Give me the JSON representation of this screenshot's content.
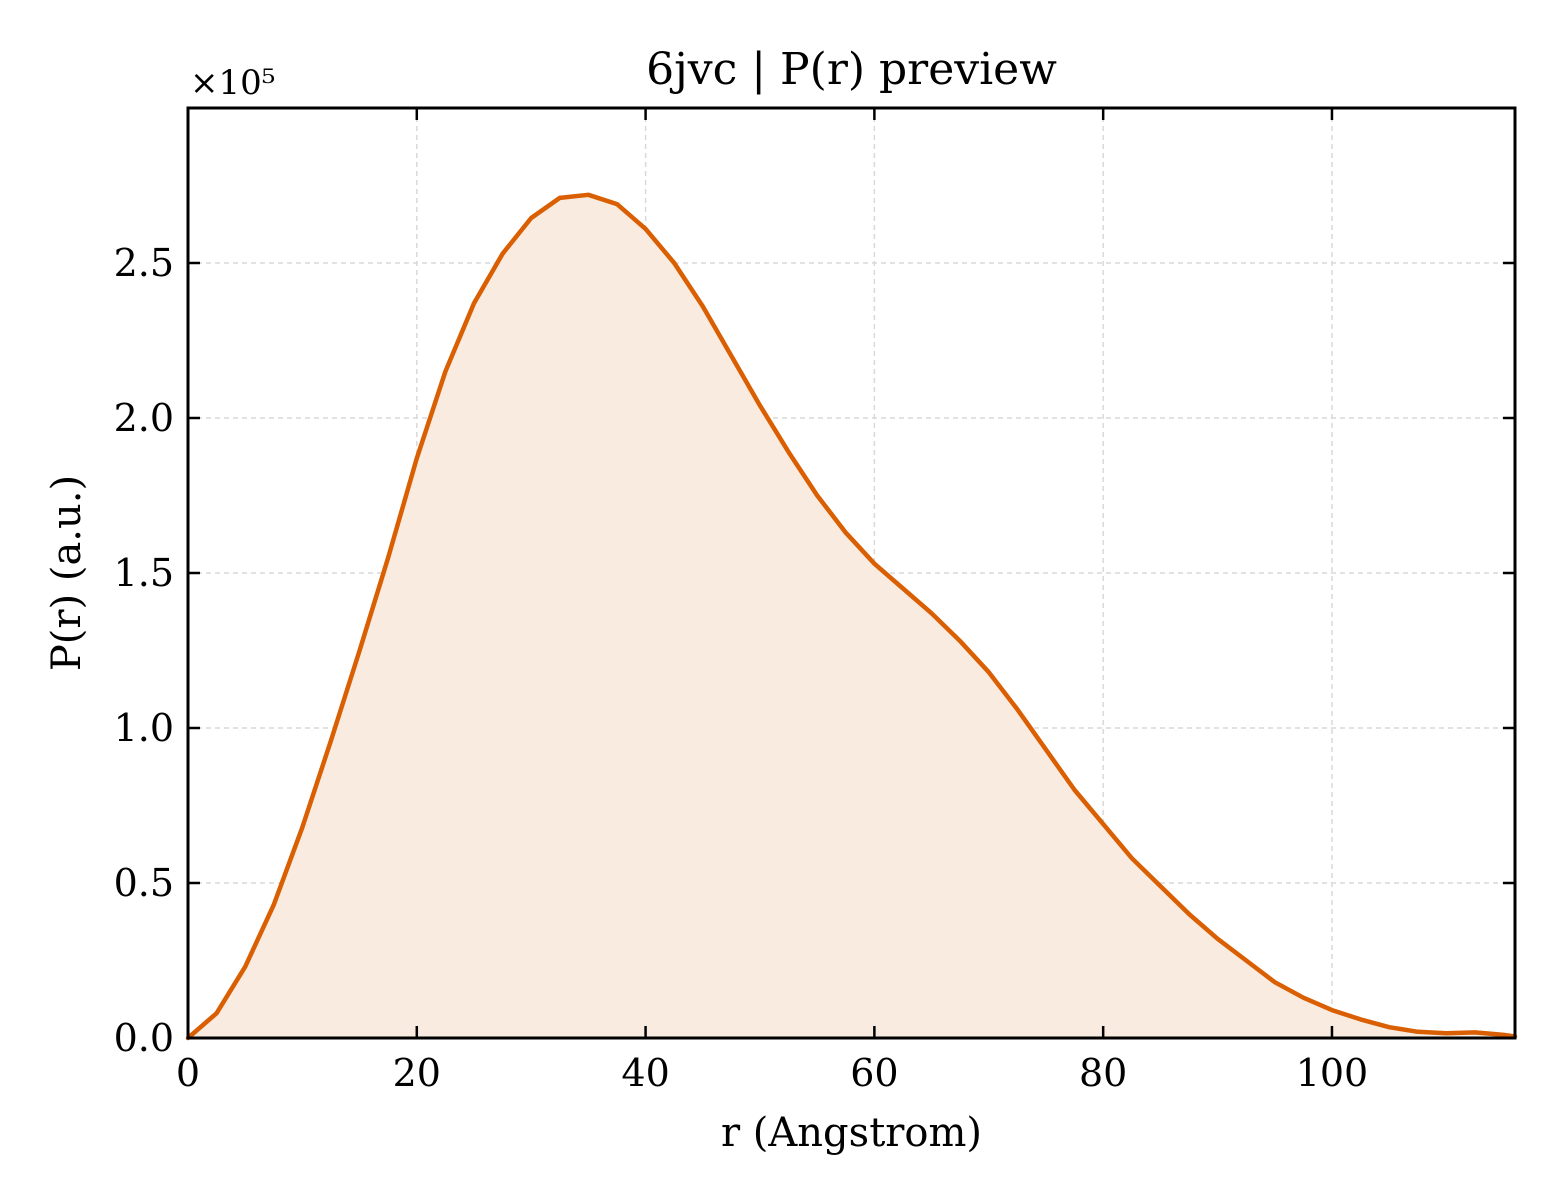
{
  "chart_data": {
    "type": "area",
    "title": "6jvc | P(r) preview",
    "xlabel": "r (Angstrom)",
    "ylabel": "P(r) (a.u.)",
    "y_scale_label": "×10⁵",
    "xlim": [
      0,
      116
    ],
    "ylim": [
      0,
      3.0
    ],
    "xticks": [
      0,
      20,
      40,
      60,
      80,
      100
    ],
    "xtick_labels": [
      "0",
      "20",
      "40",
      "60",
      "80",
      "100"
    ],
    "yticks": [
      0.0,
      0.5,
      1.0,
      1.5,
      2.0,
      2.5
    ],
    "ytick_labels": [
      "0.0",
      "0.5",
      "1.0",
      "1.5",
      "2.0",
      "2.5"
    ],
    "grid": true,
    "colors": {
      "line": "#d95f02",
      "fill": "#f9ebe0",
      "grid": "#d9d9d9",
      "frame": "#000000"
    },
    "series": [
      {
        "x": [
          0,
          2.5,
          5,
          7.5,
          10,
          12.5,
          15,
          17.5,
          20,
          22.5,
          25,
          27.5,
          30,
          32.5,
          35,
          37.5,
          40,
          42.5,
          45,
          47.5,
          50,
          52.5,
          55,
          57.5,
          60,
          62.5,
          65,
          67.5,
          70,
          72.5,
          75,
          77.5,
          80,
          82.5,
          85,
          87.5,
          90,
          92.5,
          95,
          97.5,
          100,
          102.5,
          105,
          107.5,
          110,
          112.5,
          115,
          116
        ],
        "y": [
          0.0,
          0.08,
          0.23,
          0.43,
          0.68,
          0.96,
          1.25,
          1.55,
          1.87,
          2.15,
          2.37,
          2.53,
          2.645,
          2.71,
          2.72,
          2.69,
          2.61,
          2.5,
          2.36,
          2.2,
          2.04,
          1.89,
          1.75,
          1.63,
          1.53,
          1.45,
          1.37,
          1.28,
          1.18,
          1.06,
          0.93,
          0.8,
          0.69,
          0.58,
          0.49,
          0.4,
          0.32,
          0.25,
          0.18,
          0.13,
          0.09,
          0.06,
          0.035,
          0.02,
          0.015,
          0.018,
          0.01,
          0.005
        ]
      }
    ]
  }
}
